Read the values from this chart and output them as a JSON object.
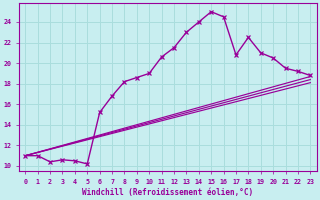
{
  "xlabel": "Windchill (Refroidissement éolien,°C)",
  "bg_color": "#c8eef0",
  "line_color": "#990099",
  "grid_color": "#aadddd",
  "xlim": [
    -0.5,
    23.5
  ],
  "ylim": [
    9.5,
    25.8
  ],
  "xticks": [
    0,
    1,
    2,
    3,
    4,
    5,
    6,
    7,
    8,
    9,
    10,
    11,
    12,
    13,
    14,
    15,
    16,
    17,
    18,
    19,
    20,
    21,
    22,
    23
  ],
  "yticks": [
    10,
    12,
    14,
    16,
    18,
    20,
    22,
    24
  ],
  "main_x": [
    0,
    1,
    2,
    3,
    4,
    5,
    6,
    7,
    8,
    9,
    10,
    11,
    12,
    13,
    14,
    15,
    16,
    17,
    18,
    19,
    20,
    21,
    22,
    23
  ],
  "main_y": [
    11.0,
    11.0,
    10.4,
    10.6,
    10.5,
    10.2,
    15.2,
    16.8,
    18.2,
    18.6,
    19.0,
    20.6,
    21.5,
    23.0,
    24.0,
    25.0,
    24.5,
    20.8,
    22.5,
    21.0,
    20.5,
    19.5,
    19.2,
    18.8
  ],
  "line1_x": [
    0,
    23
  ],
  "line1_y": [
    11.0,
    18.7
  ],
  "line2_x": [
    0,
    23
  ],
  "line2_y": [
    11.0,
    18.1
  ],
  "line3_x": [
    0,
    23
  ],
  "line3_y": [
    11.0,
    18.4
  ]
}
